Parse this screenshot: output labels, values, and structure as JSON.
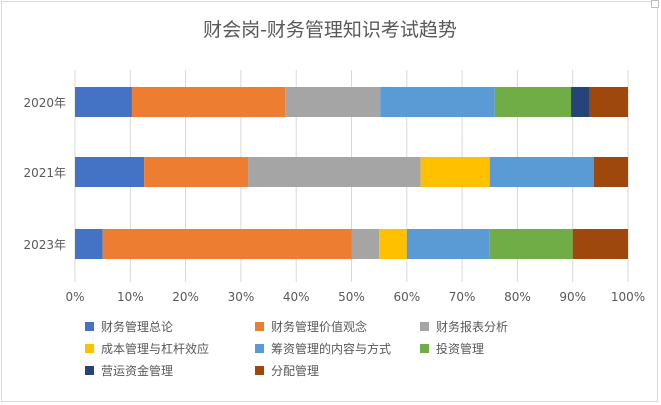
{
  "chart_data": {
    "type": "bar",
    "orientation": "horizontal",
    "stacked": "percent",
    "title": "财会岗-财务管理知识考试趋势",
    "categories": [
      "2020年",
      "2021年",
      "2023年"
    ],
    "xlim": [
      0,
      100
    ],
    "x_ticks": [
      "0%",
      "10%",
      "20%",
      "30%",
      "40%",
      "50%",
      "60%",
      "70%",
      "80%",
      "90%",
      "100%"
    ],
    "grid": "vertical",
    "legend_position": "bottom",
    "series": [
      {
        "name": "财务管理总论",
        "color": "#4472C4",
        "values": [
          10.3,
          12.5,
          5.0
        ]
      },
      {
        "name": "财务管理价值观念",
        "color": "#ED7D31",
        "values": [
          27.7,
          18.8,
          45.0
        ]
      },
      {
        "name": "财务报表分析",
        "color": "#A5A5A5",
        "values": [
          17.2,
          31.2,
          5.0
        ]
      },
      {
        "name": "成本管理与杠杆效应",
        "color": "#FFC000",
        "values": [
          0,
          12.5,
          5.0
        ]
      },
      {
        "name": "筹资管理的内容与方式",
        "color": "#5B9BD5",
        "values": [
          20.7,
          18.8,
          15.0
        ]
      },
      {
        "name": "投资管理",
        "color": "#70AD47",
        "values": [
          13.8,
          0,
          15.0
        ]
      },
      {
        "name": "营运资金管理",
        "color": "#264478",
        "values": [
          3.4,
          0,
          0
        ]
      },
      {
        "name": "分配管理",
        "color": "#9E480E",
        "values": [
          6.9,
          6.2,
          10.0
        ]
      }
    ]
  }
}
